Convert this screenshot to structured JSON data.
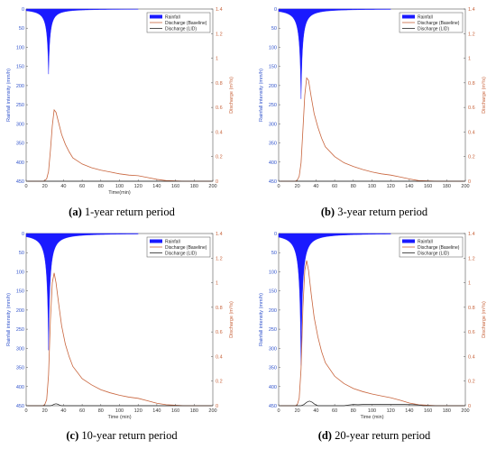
{
  "chart_data": [
    {
      "type": "line",
      "caption_letter": "(a)",
      "caption_text": "1-year return period",
      "xlabel": "Time(min)",
      "ylabel_left": "Rainfall intensity (mm/h)",
      "ylabel_right": "Discharge (m³/s)",
      "xlim": [
        0,
        200
      ],
      "ylim_left": [
        0,
        450
      ],
      "ylim_right": [
        0,
        1.4
      ],
      "xticks": [
        "0",
        "20",
        "40",
        "60",
        "80",
        "100",
        "120",
        "140",
        "160",
        "180",
        "200"
      ],
      "yticks_left": [
        "0",
        "50",
        "100",
        "150",
        "200",
        "250",
        "300",
        "350",
        "400",
        "450"
      ],
      "yticks_right": [
        "0",
        "0.2",
        "0.4",
        "0.6",
        "0.8",
        "1",
        "1.2",
        "1.4"
      ],
      "legend": [
        "Rainfall",
        "Discharge (Baseline)",
        "Discharge (LID)"
      ],
      "series": [
        {
          "name": "Rainfall",
          "peak_time": 24,
          "peak": 170,
          "end_time": 120
        },
        {
          "name": "Discharge (Baseline)",
          "x": [
            0,
            18,
            20,
            22,
            24,
            26,
            28,
            30,
            32,
            35,
            38,
            42,
            46,
            50,
            60,
            70,
            80,
            90,
            100,
            110,
            120,
            130,
            140,
            150,
            170,
            200
          ],
          "y": [
            0,
            0,
            0.005,
            0.02,
            0.08,
            0.25,
            0.45,
            0.58,
            0.56,
            0.47,
            0.38,
            0.3,
            0.24,
            0.19,
            0.14,
            0.11,
            0.09,
            0.075,
            0.06,
            0.05,
            0.045,
            0.03,
            0.015,
            0.005,
            0,
            0
          ]
        },
        {
          "name": "Discharge (LID)",
          "x": [
            0,
            200
          ],
          "y": [
            0,
            0
          ]
        }
      ]
    },
    {
      "type": "line",
      "caption_letter": "(b)",
      "caption_text": "3-year return period",
      "xlabel": "",
      "ylabel_left": "Rainfall intensity (mm/h)",
      "ylabel_right": "Discharge (m³/s)",
      "xlim": [
        0,
        200
      ],
      "ylim_left": [
        0,
        450
      ],
      "ylim_right": [
        0,
        1.4
      ],
      "xticks": [
        "0",
        "20",
        "40",
        "60",
        "80",
        "100",
        "120",
        "140",
        "160",
        "180",
        "200"
      ],
      "yticks_left": [
        "0",
        "50",
        "100",
        "150",
        "200",
        "250",
        "300",
        "350",
        "400",
        "450"
      ],
      "yticks_right": [
        "0",
        "0.2",
        "0.4",
        "0.6",
        "0.8",
        "1",
        "1.2",
        "1.4"
      ],
      "legend": [
        "Rainfall",
        "Discharge (Baseline)",
        "Discharge (LID)"
      ],
      "series": [
        {
          "name": "Rainfall",
          "peak_time": 24,
          "peak": 235,
          "end_time": 120
        },
        {
          "name": "Discharge (Baseline)",
          "x": [
            0,
            18,
            20,
            22,
            24,
            26,
            28,
            30,
            32,
            35,
            38,
            42,
            46,
            50,
            60,
            70,
            80,
            90,
            100,
            110,
            120,
            130,
            140,
            150,
            170,
            200
          ],
          "y": [
            0,
            0,
            0.01,
            0.04,
            0.15,
            0.42,
            0.7,
            0.84,
            0.82,
            0.68,
            0.55,
            0.44,
            0.35,
            0.28,
            0.2,
            0.15,
            0.12,
            0.095,
            0.075,
            0.06,
            0.05,
            0.035,
            0.018,
            0.005,
            0,
            0
          ]
        },
        {
          "name": "Discharge (LID)",
          "x": [
            0,
            200
          ],
          "y": [
            0,
            0
          ]
        }
      ]
    },
    {
      "type": "line",
      "caption_letter": "(c)",
      "caption_text": "10-year return period",
      "xlabel": "Time (min)",
      "ylabel_left": "Rainfall intensity (mm/h)",
      "ylabel_right": "Discharge (m³/s)",
      "xlim": [
        0,
        200
      ],
      "ylim_left": [
        0,
        450
      ],
      "ylim_right": [
        0,
        1.4
      ],
      "xticks": [
        "0",
        "20",
        "40",
        "60",
        "80",
        "100",
        "120",
        "140",
        "160",
        "180",
        "200"
      ],
      "yticks_left": [
        "0",
        "50",
        "100",
        "150",
        "200",
        "250",
        "300",
        "350",
        "400",
        "450"
      ],
      "yticks_right": [
        "0",
        "0.2",
        "0.4",
        "0.6",
        "0.8",
        "1",
        "1.2",
        "1.4"
      ],
      "legend": [
        "Rainfall",
        "Discharge (Baseline)",
        "Discharge (LID)"
      ],
      "series": [
        {
          "name": "Rainfall",
          "peak_time": 24,
          "peak": 305,
          "end_time": 120
        },
        {
          "name": "Discharge (Baseline)",
          "x": [
            0,
            18,
            20,
            22,
            24,
            26,
            28,
            30,
            32,
            35,
            38,
            42,
            46,
            50,
            60,
            70,
            80,
            90,
            100,
            110,
            120,
            130,
            140,
            150,
            170,
            200
          ],
          "y": [
            0,
            0,
            0.01,
            0.05,
            0.25,
            0.7,
            1.0,
            1.08,
            1.0,
            0.82,
            0.65,
            0.5,
            0.4,
            0.32,
            0.22,
            0.17,
            0.13,
            0.105,
            0.085,
            0.07,
            0.06,
            0.04,
            0.02,
            0.008,
            0,
            0
          ]
        },
        {
          "name": "Discharge (LID)",
          "x": [
            0,
            26,
            28,
            30,
            32,
            34,
            36,
            38,
            200
          ],
          "y": [
            0,
            0,
            0.004,
            0.012,
            0.016,
            0.012,
            0.004,
            0,
            0
          ]
        }
      ]
    },
    {
      "type": "line",
      "caption_letter": "(d)",
      "caption_text": "20-year return period",
      "xlabel": "Time (min)",
      "ylabel_left": "Rainfall intensity (mm/h)",
      "ylabel_right": "Discharge (m³/s)",
      "xlim": [
        0,
        200
      ],
      "ylim_left": [
        0,
        450
      ],
      "ylim_right": [
        0,
        1.4
      ],
      "xticks": [
        "0",
        "20",
        "40",
        "60",
        "80",
        "100",
        "120",
        "140",
        "160",
        "180",
        "200"
      ],
      "yticks_left": [
        "0",
        "50",
        "100",
        "150",
        "200",
        "250",
        "300",
        "350",
        "400",
        "450"
      ],
      "yticks_right": [
        "0",
        "0.2",
        "0.4",
        "0.6",
        "0.8",
        "1",
        "1.2",
        "1.4"
      ],
      "legend": [
        "Rainfall",
        "Discharge (Baseline)",
        "Discharge (LID)"
      ],
      "series": [
        {
          "name": "Rainfall",
          "peak_time": 24,
          "peak": 345,
          "end_time": 120
        },
        {
          "name": "Discharge (Baseline)",
          "x": [
            0,
            18,
            20,
            22,
            24,
            26,
            28,
            30,
            32,
            35,
            38,
            42,
            46,
            50,
            60,
            70,
            80,
            90,
            100,
            110,
            120,
            130,
            140,
            150,
            170,
            200
          ],
          "y": [
            0,
            0,
            0.01,
            0.06,
            0.3,
            0.8,
            1.1,
            1.18,
            1.1,
            0.9,
            0.72,
            0.56,
            0.44,
            0.35,
            0.24,
            0.18,
            0.14,
            0.115,
            0.095,
            0.08,
            0.065,
            0.045,
            0.022,
            0.008,
            0,
            0
          ]
        },
        {
          "name": "Discharge (LID)",
          "x": [
            0,
            24,
            27,
            30,
            33,
            36,
            39,
            42,
            70,
            75,
            80,
            85,
            90,
            95,
            100,
            105,
            110,
            115,
            120,
            125,
            130,
            135,
            140,
            145,
            150,
            155,
            200
          ],
          "y": [
            0,
            0,
            0.01,
            0.028,
            0.038,
            0.028,
            0.01,
            0,
            0,
            0.006,
            0.01,
            0.008,
            0.01,
            0.012,
            0.012,
            0.012,
            0.01,
            0.01,
            0.01,
            0.01,
            0.01,
            0.01,
            0.009,
            0.008,
            0.006,
            0,
            0
          ]
        }
      ]
    }
  ]
}
